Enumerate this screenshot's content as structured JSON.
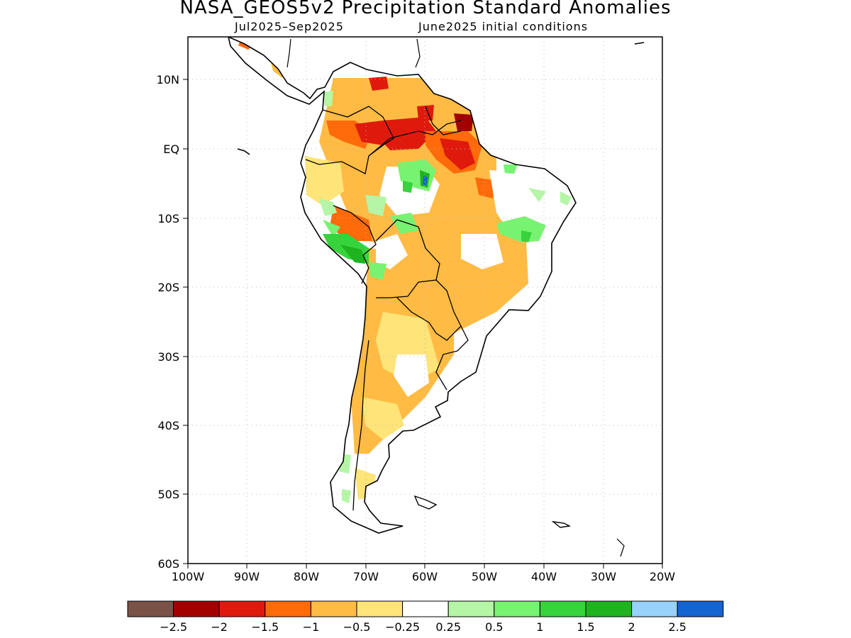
{
  "title": "NASA_GEOS5v2 Precipitation Standard Anomalies",
  "subtitle_left": "Jul2025–Sep2025",
  "subtitle_right": "June2025 initial conditions",
  "map": {
    "lon_range": [
      -100,
      -20
    ],
    "lat_range": [
      -60,
      15
    ],
    "y_tick_labels": [
      {
        "lat": 10,
        "label": "10N"
      },
      {
        "lat": 0,
        "label": "EQ"
      },
      {
        "lat": -10,
        "label": "10S"
      },
      {
        "lat": -20,
        "label": "20S"
      },
      {
        "lat": -30,
        "label": "30S"
      },
      {
        "lat": -40,
        "label": "40S"
      },
      {
        "lat": -50,
        "label": "50S"
      },
      {
        "lat": -60,
        "label": "60S"
      }
    ],
    "x_tick_labels": [
      {
        "lon": -100,
        "label": "100W"
      },
      {
        "lon": -90,
        "label": "90W"
      },
      {
        "lon": -80,
        "label": "80W"
      },
      {
        "lon": -70,
        "label": "70W"
      },
      {
        "lon": -60,
        "label": "60W"
      },
      {
        "lon": -50,
        "label": "50W"
      },
      {
        "lon": -40,
        "label": "40W"
      },
      {
        "lon": -30,
        "label": "30W"
      },
      {
        "lon": -20,
        "label": "20W"
      }
    ],
    "grid": "dotted",
    "colors": {
      "below_-2.5": "#7a5246",
      "-2.5_-2": "#a30000",
      "-2_-1.5": "#df1a0c",
      "-1.5_-1": "#ff6a0a",
      "-1_-0.5": "#ffbb44",
      "-0.5_-0.25": "#ffe479",
      "-0.25_0.25": "#ffffff",
      "0.25_0.5": "#b4f6a5",
      "0.5_1": "#78f271",
      "1_1.5": "#37d33d",
      "1.5_2": "#1fb41f",
      "2_2.5": "#96d2fa",
      "above_2.5": "#1464d2"
    }
  },
  "colorbar": {
    "boxes": [
      "#7a5246",
      "#a30000",
      "#df1a0c",
      "#ff6a0a",
      "#ffbb44",
      "#ffe479",
      "#ffffff",
      "#b4f6a5",
      "#78f271",
      "#37d33d",
      "#1fb41f",
      "#96d2fa",
      "#1464d2"
    ],
    "labels": [
      "−2.5",
      "−2",
      "−1.5",
      "−1",
      "−0.5",
      "−0.25",
      "0.25",
      "0.5",
      "1",
      "1.5",
      "2",
      "2.5"
    ]
  }
}
